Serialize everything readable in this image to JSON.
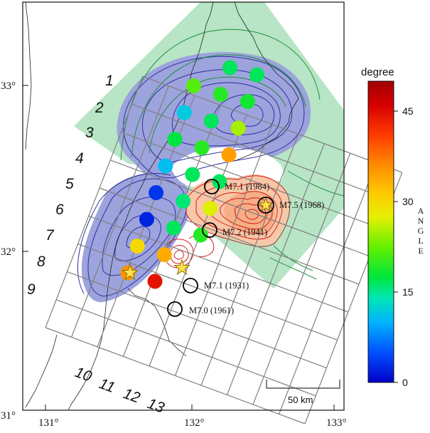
{
  "map": {
    "lon_ticks": [
      "131°",
      "132°",
      "133°"
    ],
    "lat_ticks": [
      "31°",
      "32°",
      "33°"
    ],
    "row_labels": [
      "1",
      "2",
      "3",
      "4",
      "5",
      "6",
      "7",
      "8",
      "9"
    ],
    "col_labels": [
      "10",
      "11",
      "12",
      "13"
    ],
    "scale_bar_label": "50 km"
  },
  "earthquakes": [
    {
      "label": "M7.1 (1984)",
      "year": 1984,
      "magnitude": 7.1,
      "marker": "open-circle"
    },
    {
      "label": "M7.5 (1968)",
      "year": 1968,
      "magnitude": 7.5,
      "marker": "star-in-circle"
    },
    {
      "label": "M7.2 (1941)",
      "year": 1941,
      "magnitude": 7.2,
      "marker": "open-circle"
    },
    {
      "label": "M7.1 (1931)",
      "year": 1931,
      "magnitude": 7.1,
      "marker": "open-circle"
    },
    {
      "label": "M7.0 (1961)",
      "year": 1961,
      "magnitude": 7.0,
      "marker": "open-circle"
    }
  ],
  "colorbar": {
    "title": "degree",
    "side_label": "ANGLE",
    "ticks": [
      "0",
      "15",
      "30",
      "45"
    ],
    "min": 0,
    "max": 50,
    "colors": [
      "#0000c8",
      "#0050ff",
      "#00b4ff",
      "#00e6b4",
      "#00e63c",
      "#64f000",
      "#e6f000",
      "#ffc800",
      "#ff8c00",
      "#ff3c00",
      "#d70000",
      "#a00000"
    ]
  },
  "colors": {
    "blue_region": "#9da3dc",
    "green_region": "#b7e5c5",
    "red_region": "#f9c7a7",
    "blue_contour": "#2e2f9e",
    "green_contour": "#1d8f3a",
    "red_contour": "#d21e1e"
  },
  "angle_points": [
    {
      "row": 1,
      "col": 12,
      "angle": 17
    },
    {
      "row": 1,
      "col": 13,
      "angle": 17
    },
    {
      "row": 2,
      "col": 11,
      "angle": 22
    },
    {
      "row": 2,
      "col": 12,
      "angle": 20
    },
    {
      "row": 2,
      "col": 13,
      "angle": 19
    },
    {
      "row": 3,
      "col": 11,
      "angle": 11
    },
    {
      "row": 3,
      "col": 12,
      "angle": 17
    },
    {
      "row": 3,
      "col": 13,
      "angle": 25
    },
    {
      "row": 4,
      "col": 11,
      "angle": 18
    },
    {
      "row": 4,
      "col": 12,
      "angle": 20
    },
    {
      "row": 4,
      "col": 13,
      "angle": 35
    },
    {
      "row": 5,
      "col": 11,
      "angle": 10
    },
    {
      "row": 5,
      "col": 12,
      "angle": 17
    },
    {
      "row": 5,
      "col": 13,
      "angle": 17
    },
    {
      "row": 6,
      "col": 11,
      "angle": 3
    },
    {
      "row": 6,
      "col": 12,
      "angle": 16
    },
    {
      "row": 6,
      "col": 13,
      "angle": 27
    },
    {
      "row": 7,
      "col": 11,
      "angle": 2
    },
    {
      "row": 7,
      "col": 12,
      "angle": 17
    },
    {
      "row": 7,
      "col": 13,
      "angle": 20
    },
    {
      "row": 8,
      "col": 11,
      "angle": 30
    },
    {
      "row": 8,
      "col": 12,
      "angle": 34
    },
    {
      "row": 9,
      "col": 11,
      "angle": 36
    },
    {
      "row": 9,
      "col": 12,
      "angle": 44
    }
  ]
}
